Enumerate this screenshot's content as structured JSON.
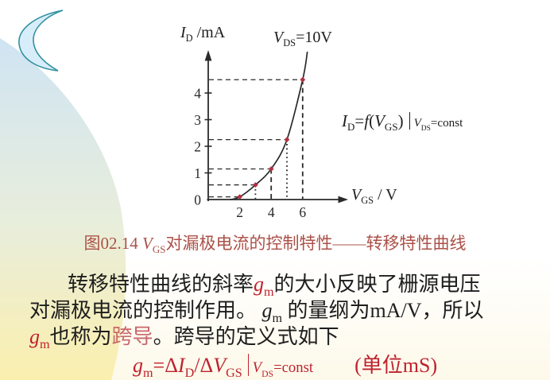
{
  "colors": {
    "red": "#bf222e",
    "pink": "#c8686c",
    "caption": "#ab5148",
    "dark": "#1e1e1e",
    "axis": "#2a2a2a",
    "point": "#b2303e",
    "moon_fill": "#d8edfa",
    "moon_stroke": "#31929f",
    "shape_top": "#cfe4f3",
    "shape_mid": "#e9eedb",
    "shape_bottom": "#fbefae"
  },
  "chart_data": {
    "type": "scatter",
    "title": "V_DS = 10V transfer characteristic",
    "x": [
      2,
      3,
      4,
      5,
      6
    ],
    "y": [
      0.1,
      0.55,
      1.15,
      2.25,
      4.5
    ],
    "xticks": [
      2,
      4,
      6
    ],
    "yticks": [
      0,
      1,
      2,
      3,
      4
    ],
    "xlim": [
      0,
      9.2
    ],
    "ylim": [
      0,
      5.6
    ],
    "grid": "off",
    "curve_start": {
      "x": 1.4,
      "y": 0
    },
    "curve_end": {
      "x": 6.3,
      "y": 5.55
    },
    "vertical_guide_style": {
      "3": "dotted",
      "4": "dashed",
      "5": "dotted",
      "6": "dashed"
    },
    "ylabel_segments": [
      {
        "t": "I",
        "i": true
      },
      {
        "t": "D",
        "sub": true
      },
      {
        "t": " /mA"
      }
    ],
    "condition_segments": [
      {
        "t": "V",
        "i": true
      },
      {
        "t": "DS",
        "sub": true
      },
      {
        "t": "=10V"
      }
    ],
    "xlabel_segments": [
      {
        "t": "V",
        "i": true
      },
      {
        "t": "GS",
        "sub": true
      },
      {
        "t": " / V"
      }
    ]
  },
  "figure": {
    "side_formula_segments": [
      {
        "t": "I",
        "i": true
      },
      {
        "t": "D",
        "sub": true
      },
      {
        "t": "="
      },
      {
        "t": "f",
        "i": true
      },
      {
        "t": "("
      },
      {
        "t": "V",
        "i": true
      },
      {
        "t": "GS",
        "sub": true
      },
      {
        "t": ")"
      },
      {
        "bar": true
      },
      {
        "t": "V",
        "i": true,
        "sm": true
      },
      {
        "t": "DS",
        "sub": true,
        "sm": true
      },
      {
        "t": "=const",
        "sm": true
      }
    ],
    "caption_segments": [
      {
        "t": "图02.14 "
      },
      {
        "t": "V",
        "i": true
      },
      {
        "t": "GS",
        "sub": true
      },
      {
        "t": "对漏极电流的控制特性——转移特性曲线"
      }
    ]
  },
  "paragraph": {
    "lines": [
      {
        "segments": [
          {
            "t": "转移特性曲线的斜率"
          },
          {
            "t": "g",
            "i": true,
            "c": "red"
          },
          {
            "t": "m",
            "sub": true,
            "c": "red"
          },
          {
            "t": "的大小反映了栅源电压"
          }
        ]
      },
      {
        "segments": [
          {
            "t": "对漏极电流的控制作用。 "
          },
          {
            "t": "g",
            "i": true
          },
          {
            "t": "m",
            "sub": true
          },
          {
            "t": " 的量纲为mA/V，所以"
          }
        ]
      },
      {
        "segments": [
          {
            "t": "g",
            "i": true,
            "c": "red"
          },
          {
            "t": "m",
            "sub": true,
            "c": "red"
          },
          {
            "t": "也称为"
          },
          {
            "t": "跨导",
            "c": "pink"
          },
          {
            "t": "。跨导的定义式如下"
          }
        ]
      }
    ]
  },
  "gm_formula": {
    "segments": [
      {
        "t": "g",
        "i": true
      },
      {
        "t": "m",
        "sub": true
      },
      {
        "t": "=Δ"
      },
      {
        "t": "I",
        "i": true
      },
      {
        "t": "D",
        "sub": true
      },
      {
        "t": "/Δ"
      },
      {
        "t": "V",
        "i": true
      },
      {
        "t": "GS",
        "sub": true
      },
      {
        "bar": true
      },
      {
        "t": "V",
        "i": true,
        "sm": true
      },
      {
        "t": "DS",
        "sub": true,
        "sm": true
      },
      {
        "t": "=const",
        "sm": true
      },
      {
        "t": "　　"
      },
      {
        "t": "(单位mS)"
      }
    ]
  }
}
